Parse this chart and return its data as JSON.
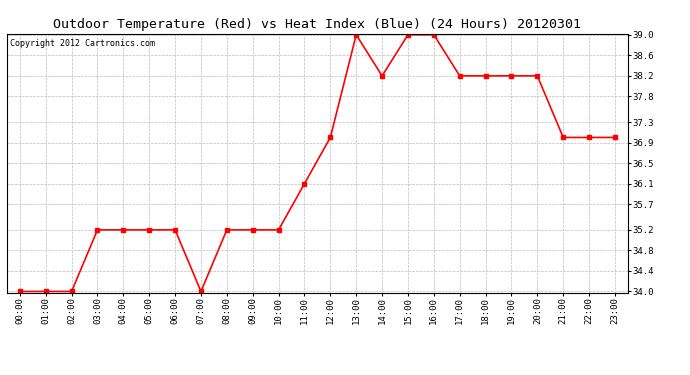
{
  "title": "Outdoor Temperature (Red) vs Heat Index (Blue) (24 Hours) 20120301",
  "copyright": "Copyright 2012 Cartronics.com",
  "x_labels": [
    "00:00",
    "01:00",
    "02:00",
    "03:00",
    "04:00",
    "05:00",
    "06:00",
    "07:00",
    "08:00",
    "09:00",
    "10:00",
    "11:00",
    "12:00",
    "13:00",
    "14:00",
    "15:00",
    "16:00",
    "17:00",
    "18:00",
    "19:00",
    "20:00",
    "21:00",
    "22:00",
    "23:00"
  ],
  "temp_values": [
    34.0,
    34.0,
    34.0,
    35.2,
    35.2,
    35.2,
    35.2,
    34.0,
    35.2,
    35.2,
    35.2,
    36.1,
    37.0,
    39.0,
    38.2,
    39.0,
    39.0,
    38.2,
    38.2,
    38.2,
    38.2,
    37.0,
    37.0,
    37.0
  ],
  "line_color": "#ff0000",
  "background_color": "#ffffff",
  "plot_bg_color": "#ffffff",
  "grid_color": "#bbbbbb",
  "ylim_min": 34.0,
  "ylim_max": 39.0,
  "yticks": [
    34.0,
    34.4,
    34.8,
    35.2,
    35.7,
    36.1,
    36.5,
    36.9,
    37.3,
    37.8,
    38.2,
    38.6,
    39.0
  ],
  "marker": "s",
  "marker_size": 2.5,
  "line_width": 1.2,
  "title_fontsize": 9.5,
  "tick_fontsize": 6.5,
  "copyright_fontsize": 6
}
